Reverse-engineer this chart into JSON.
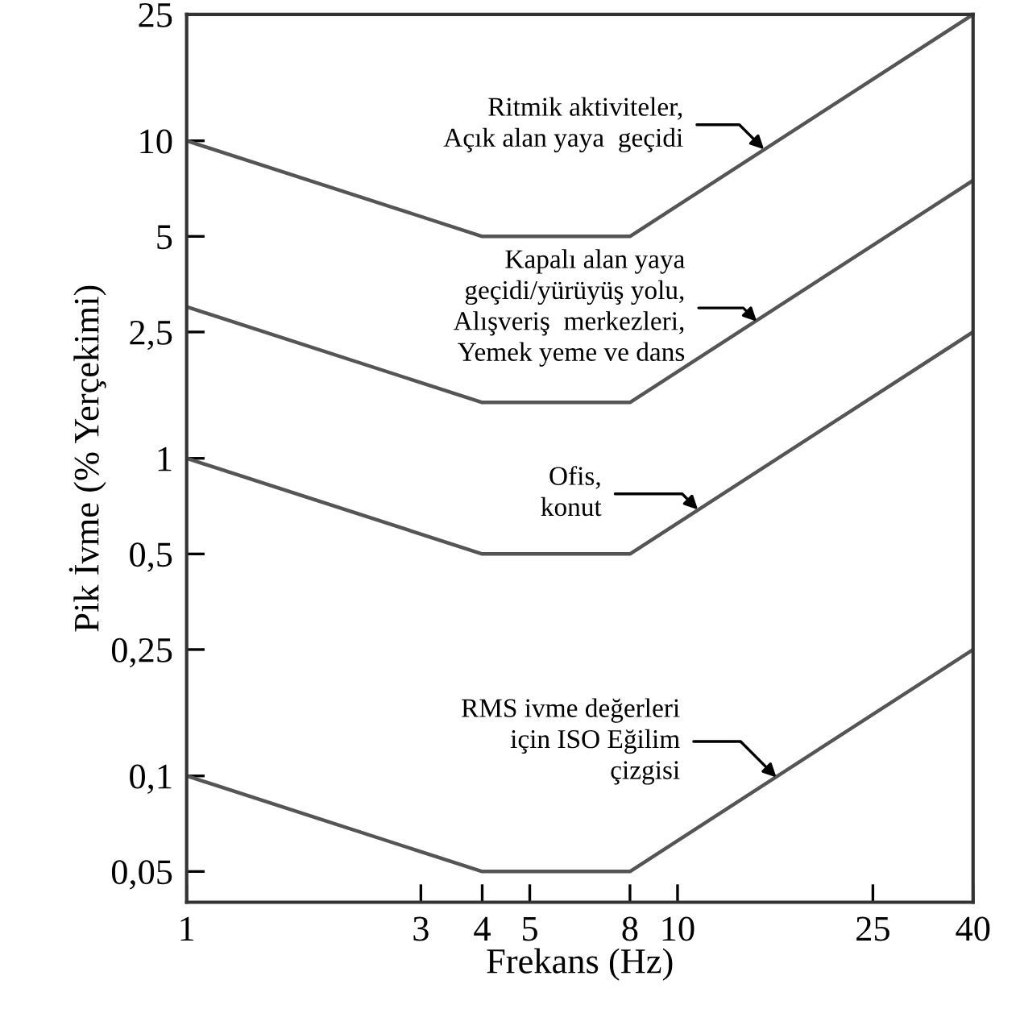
{
  "chart_data": {
    "type": "line",
    "xlabel": "Frekans (Hz)",
    "ylabel": "Pik İvme (% Yerçekimi)",
    "log": "xy",
    "grid": false,
    "marker": "none",
    "line_style": "solid",
    "xlim": [
      1,
      40
    ],
    "xticks": [
      1,
      3,
      4,
      5,
      8,
      10,
      25,
      40
    ],
    "ylim": [
      0.04,
      25
    ],
    "yticks": [
      {
        "value": 0.05,
        "label": "0,05"
      },
      {
        "value": 0.1,
        "label": "0,1"
      },
      {
        "value": 0.25,
        "label": "0,25"
      },
      {
        "value": 0.5,
        "label": "0,5"
      },
      1,
      {
        "value": 2.5,
        "label": "2,5"
      },
      5,
      10,
      25
    ],
    "series": [
      {
        "color": "#555555",
        "x": [
          1,
          4,
          8,
          40
        ],
        "values": [
          10,
          5,
          5,
          25
        ]
      },
      {
        "color": "#555555",
        "x": [
          1,
          4,
          8,
          40
        ],
        "values": [
          3,
          1.5,
          1.5,
          7.5
        ]
      },
      {
        "color": "#555555",
        "x": [
          1,
          4,
          8,
          40
        ],
        "values": [
          1,
          0.5,
          0.5,
          2.5
        ]
      },
      {
        "color": "#555555",
        "x": [
          1,
          4,
          8,
          40
        ],
        "values": [
          0.1,
          0.05,
          0.05,
          0.25
        ]
      }
    ],
    "annotations": [
      {
        "text": "Ritmik aktiviteler,\nAçık alan yaya  geçidi",
        "x": 15,
        "y": 9.4
      },
      {
        "text": "Kapalı alan yaya\ngeçidi/yürüyüş yolu,\nAlışveriş  merkezleri,\nYemek yeme ve dans",
        "x": 14.5,
        "y": 2.7
      },
      {
        "text": "Ofis,\nkonut",
        "x": 11,
        "y": 0.69
      },
      {
        "text": "RMS ivme değerleri\niçin ISO Eğilim\nçizgisi",
        "x": 15.9,
        "y": 0.099
      }
    ]
  }
}
